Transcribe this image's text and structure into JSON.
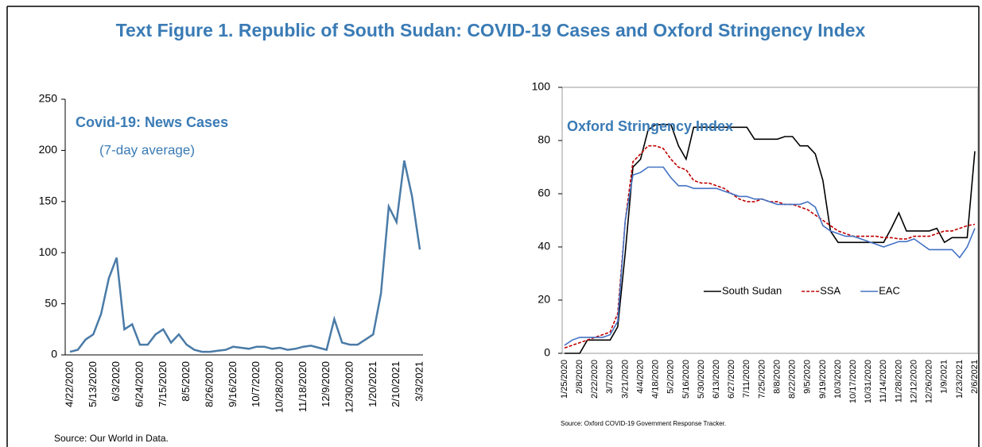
{
  "title": "Text Figure 1. Republic of South Sudan: COVID-19 Cases and Oxford Stringency Index",
  "chart_data": [
    {
      "type": "line",
      "title": "Covid-19: News Cases",
      "subtitle": "(7-day average)",
      "source": "Source: Our World in Data.",
      "categories": [
        "4/22/2020",
        null,
        null,
        "5/13/2020",
        null,
        null,
        "6/3/2020",
        null,
        null,
        "6/24/2020",
        null,
        null,
        "7/15/2020",
        null,
        null,
        "8/5/2020",
        null,
        null,
        "8/26/2020",
        null,
        null,
        "9/16/2020",
        null,
        null,
        "10/7/2020",
        null,
        null,
        "10/28/2020",
        null,
        null,
        "11/18/2020",
        null,
        null,
        "12/9/2020",
        null,
        null,
        "12/30/2020",
        null,
        null,
        "1/20/2021",
        null,
        null,
        "2/10/2021",
        null,
        null,
        "3/3/2021"
      ],
      "series": [
        {
          "name": null,
          "color": "#4a7ba7",
          "dash": false,
          "values": [
            3,
            5,
            15,
            20,
            40,
            75,
            95,
            25,
            30,
            10,
            10,
            20,
            25,
            12,
            20,
            10,
            5,
            3,
            3,
            4,
            5,
            8,
            7,
            6,
            8,
            8,
            6,
            7,
            5,
            6,
            8,
            9,
            7,
            5,
            35,
            12,
            10,
            10,
            15,
            20,
            60,
            145,
            130,
            190,
            155,
            103
          ]
        }
      ],
      "ylim": [
        0,
        250
      ],
      "yticks": [
        0,
        50,
        100,
        150,
        200,
        250
      ],
      "frame": false,
      "legend": null
    },
    {
      "type": "line",
      "title": "Oxford Stringency Index",
      "source": "Source: Oxford COVID-19 Government Response Tracker.",
      "categories": [
        "1/25/2020",
        null,
        "2/8/2020",
        null,
        "2/22/2020",
        null,
        "3/7/2020",
        null,
        "3/21/2020",
        null,
        "4/4/2020",
        null,
        "4/18/2020",
        null,
        "5/2/2020",
        null,
        "5/16/2020",
        null,
        "5/30/2020",
        null,
        "6/13/2020",
        null,
        "6/27/2020",
        null,
        "7/11/2020",
        null,
        "7/25/2020",
        null,
        "8/8/2020",
        null,
        "8/22/2020",
        null,
        "9/5/2020",
        null,
        "9/19/2020",
        null,
        "10/3/2020",
        null,
        "10/17/2020",
        null,
        "10/31/2020",
        null,
        "11/14/2020",
        null,
        "11/28/2020",
        null,
        "12/12/2020",
        null,
        "12/26/2020",
        null,
        "1/9/2021",
        null,
        "1/23/2021",
        null,
        "2/6/2021"
      ],
      "series": [
        {
          "name": "South Sudan",
          "color": "#000000",
          "dash": false,
          "values": [
            0,
            0,
            0,
            5,
            5,
            5,
            5,
            10,
            38,
            70,
            73,
            84,
            86,
            86,
            86,
            78,
            73,
            85,
            85,
            85,
            85,
            85,
            85,
            85,
            85,
            80.5,
            80.5,
            80.5,
            80.5,
            81.5,
            81.5,
            78,
            78,
            75,
            65,
            46,
            41.7,
            41.7,
            41.7,
            41.7,
            41.7,
            41.7,
            41.7,
            47,
            52.8,
            46,
            46,
            46,
            46,
            47,
            41.7,
            43.5,
            43.5,
            43.5,
            76
          ]
        },
        {
          "name": "SSA",
          "color": "#c00000",
          "dash": true,
          "values": [
            2,
            3,
            4,
            5,
            6,
            7,
            8,
            15,
            50,
            72,
            75,
            78,
            78,
            77,
            73,
            70,
            69,
            65,
            64,
            64,
            63,
            62,
            60,
            58,
            57,
            57,
            58,
            57,
            57,
            56,
            56,
            55,
            54,
            52,
            50,
            48,
            46,
            45,
            44,
            44,
            44,
            44,
            43.5,
            43.5,
            43,
            43,
            44,
            44,
            44,
            45,
            46,
            46,
            47,
            48,
            48.5
          ]
        },
        {
          "name": "EAC",
          "color": "#4472c4",
          "dash": false,
          "values": [
            3,
            5,
            6,
            6,
            6,
            6,
            7,
            12,
            50,
            67,
            68,
            70,
            70,
            70,
            66,
            63,
            63,
            62,
            62,
            62,
            62,
            61,
            60,
            59,
            59,
            58,
            58,
            57,
            56,
            56,
            56,
            56,
            57,
            55,
            48,
            46,
            45,
            44,
            44,
            43,
            42,
            41,
            40,
            41,
            42,
            42,
            43,
            41,
            39,
            39,
            39,
            39,
            36,
            40,
            47
          ]
        }
      ],
      "ylim": [
        0,
        100
      ],
      "yticks": [
        0,
        20,
        40,
        60,
        80,
        100
      ],
      "frame": true,
      "legend": "lower center"
    }
  ]
}
